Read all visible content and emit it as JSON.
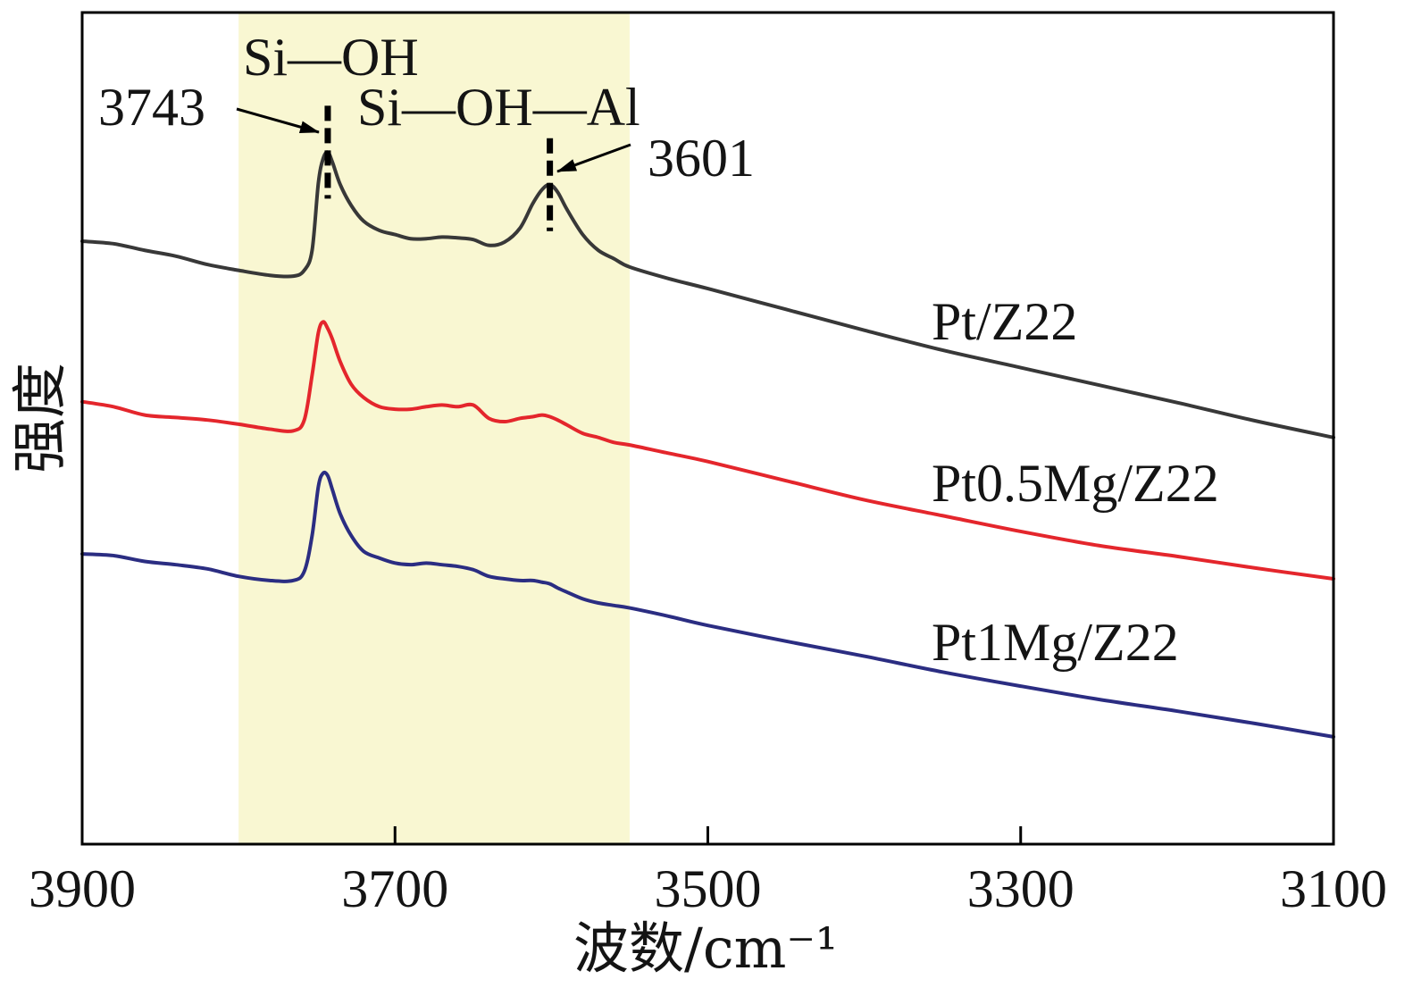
{
  "chart_data": {
    "type": "line",
    "xlabel": "波数/cm⁻¹",
    "ylabel": "强度",
    "xlim": [
      3900,
      3100
    ],
    "ylim": [
      0,
      100
    ],
    "xticks": [
      3900,
      3700,
      3500,
      3300,
      3100
    ],
    "xtick_labels": [
      "3900",
      "3700",
      "3500",
      "3300",
      "3100"
    ],
    "grid": false,
    "shaded_region": {
      "x_start": 3800,
      "x_end": 3550,
      "color": "#f9f7d2"
    },
    "x": [
      3900,
      3880,
      3860,
      3840,
      3820,
      3800,
      3780,
      3765,
      3758,
      3753,
      3749,
      3746,
      3743,
      3740,
      3735,
      3728,
      3720,
      3710,
      3700,
      3690,
      3680,
      3670,
      3660,
      3650,
      3640,
      3630,
      3620,
      3612,
      3606,
      3601,
      3596,
      3590,
      3580,
      3570,
      3560,
      3550,
      3525,
      3500,
      3450,
      3400,
      3350,
      3300,
      3250,
      3200,
      3150,
      3100
    ],
    "series": [
      {
        "name": "Pt/Z22",
        "color": "#383838",
        "values": [
          72.5,
          72.2,
          71.4,
          70.7,
          69.7,
          69.0,
          68.4,
          68.3,
          69.0,
          71.4,
          79.5,
          82.4,
          83.2,
          82.0,
          79.3,
          76.8,
          74.9,
          73.8,
          73.3,
          72.8,
          72.8,
          73.0,
          72.9,
          72.7,
          72.0,
          72.4,
          74.1,
          77.0,
          78.7,
          79.3,
          78.4,
          76.3,
          73.3,
          71.4,
          70.4,
          69.4,
          68.0,
          66.8,
          64.3,
          61.8,
          59.4,
          57.3,
          55.2,
          53.1,
          50.9,
          48.9
        ]
      },
      {
        "name": "Pt0.5Mg/Z22",
        "color": "#e4262c",
        "values": [
          53.2,
          52.6,
          51.6,
          51.3,
          51.0,
          50.5,
          49.9,
          49.7,
          51.0,
          56.4,
          61.5,
          62.8,
          62.0,
          60.7,
          58.0,
          55.3,
          53.7,
          52.6,
          52.3,
          52.3,
          52.6,
          52.8,
          52.6,
          52.8,
          51.2,
          50.8,
          51.2,
          51.4,
          51.6,
          51.4,
          51.0,
          50.4,
          49.4,
          48.9,
          48.3,
          48.0,
          47.0,
          46.0,
          43.7,
          41.4,
          39.5,
          37.6,
          35.9,
          34.6,
          33.2,
          31.9
        ]
      },
      {
        "name": "Pt1Mg/Z22",
        "color": "#2b2d82",
        "values": [
          34.9,
          34.7,
          34.0,
          33.6,
          33.1,
          32.2,
          31.7,
          31.7,
          32.8,
          37.1,
          43.0,
          44.6,
          44.3,
          42.6,
          39.7,
          37.1,
          35.2,
          34.4,
          33.8,
          33.6,
          33.8,
          33.6,
          33.4,
          33.0,
          32.2,
          31.9,
          31.7,
          31.7,
          31.5,
          31.3,
          30.8,
          30.3,
          29.5,
          29.0,
          28.7,
          28.4,
          27.4,
          26.3,
          24.4,
          22.6,
          20.7,
          19.0,
          17.4,
          16.0,
          14.5,
          12.9
        ]
      }
    ],
    "peaks": [
      {
        "wavenumber": 3743,
        "label": "3743",
        "assignment": "Si—OH"
      },
      {
        "wavenumber": 3601,
        "label": "3601",
        "assignment": "Si—OH—Al"
      }
    ]
  }
}
